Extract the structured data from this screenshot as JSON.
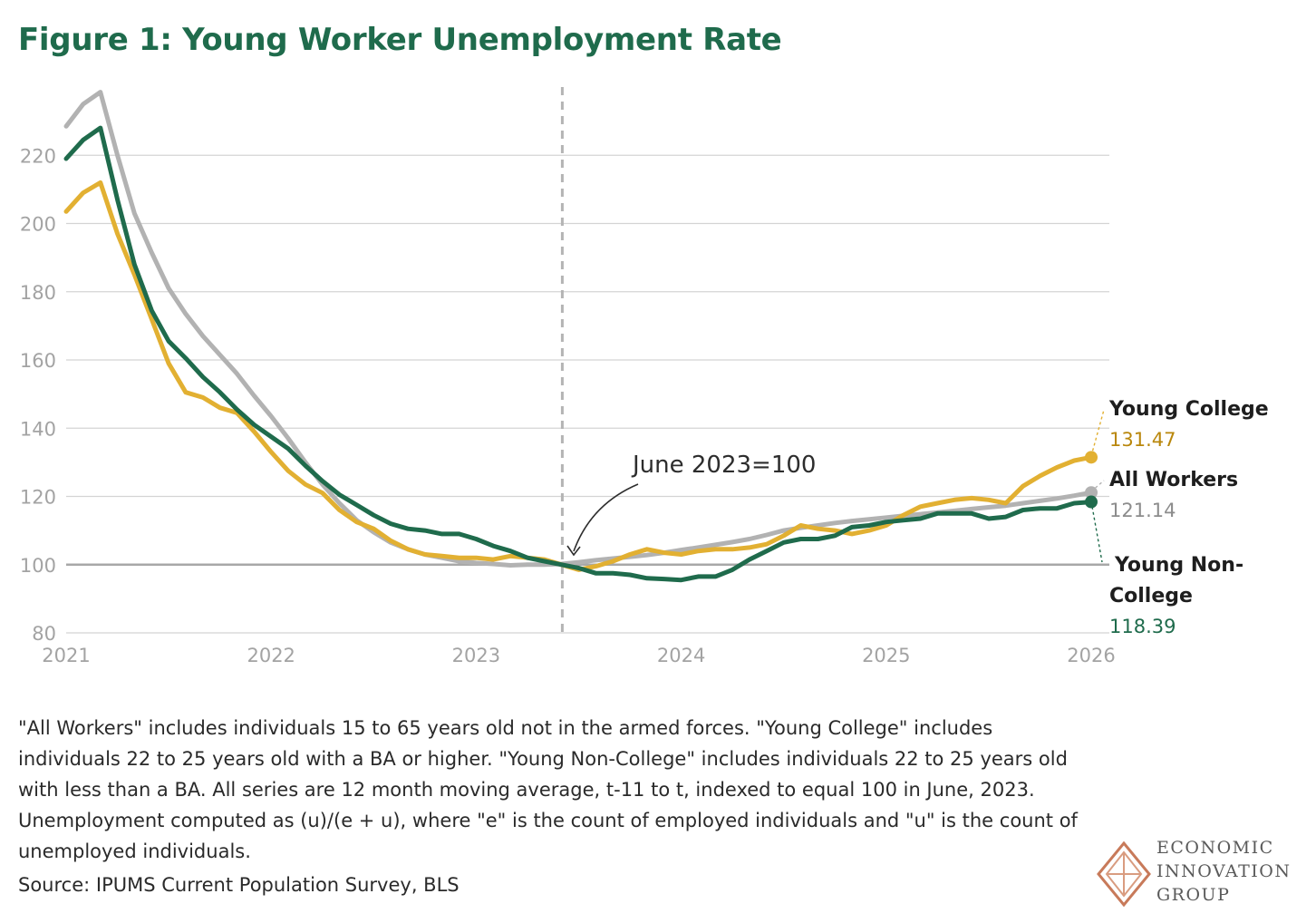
{
  "chart_data": {
    "type": "line",
    "title": "Figure 1: Young Worker Unemployment Rate",
    "xlabel": "",
    "ylabel": "",
    "ylim": [
      80,
      240
    ],
    "xlim": [
      2021,
      2026
    ],
    "yticks": [
      80,
      100,
      120,
      140,
      160,
      180,
      200,
      220
    ],
    "xticks": [
      "2021",
      "2022",
      "2023",
      "2024",
      "2025",
      "2026"
    ],
    "grid": true,
    "reference_line": 100,
    "marker": {
      "x": 2023.42,
      "label": "June 2023=100"
    },
    "series": [
      {
        "name": "All Workers",
        "color": "#b2b2b2",
        "end_label": "121.14",
        "x": [
          2021.0,
          2021.083,
          2021.167,
          2021.25,
          2021.333,
          2021.417,
          2021.5,
          2021.583,
          2021.667,
          2021.75,
          2021.833,
          2021.917,
          2022.0,
          2022.083,
          2022.167,
          2022.25,
          2022.333,
          2022.417,
          2022.5,
          2022.583,
          2022.667,
          2022.75,
          2022.833,
          2022.917,
          2023.0,
          2023.083,
          2023.167,
          2023.25,
          2023.333,
          2023.417,
          2023.5,
          2023.583,
          2023.667,
          2023.75,
          2023.833,
          2023.917,
          2024.0,
          2024.083,
          2024.167,
          2024.25,
          2024.333,
          2024.417,
          2024.5,
          2024.583,
          2024.667,
          2024.75,
          2024.833,
          2024.917,
          2025.0,
          2025.083,
          2025.167,
          2025.25,
          2025.333,
          2025.417,
          2025.5,
          2025.583,
          2025.667,
          2025.75,
          2025.833,
          2025.917,
          2026.0
        ],
        "values": [
          228.5,
          235,
          238.5,
          220,
          203,
          191.5,
          181,
          173.5,
          167,
          161.5,
          156,
          149.5,
          143.5,
          137,
          130,
          123.5,
          118,
          113,
          109.5,
          106.5,
          104.5,
          103,
          102,
          101,
          100.5,
          100.2,
          99.8,
          100,
          100,
          100.2,
          100.7,
          101.3,
          101.8,
          102.3,
          102.8,
          103.5,
          104.3,
          105,
          105.8,
          106.6,
          107.5,
          108.7,
          110,
          110.8,
          111.5,
          112.2,
          112.8,
          113.3,
          113.8,
          114.3,
          114.8,
          115.3,
          115.8,
          116.3,
          116.8,
          117.3,
          118,
          118.7,
          119.4,
          120.2,
          121.14
        ]
      },
      {
        "name": "Young College",
        "color": "#e2b032",
        "end_label": "131.47",
        "x": [
          2021.0,
          2021.083,
          2021.167,
          2021.25,
          2021.333,
          2021.417,
          2021.5,
          2021.583,
          2021.667,
          2021.75,
          2021.833,
          2021.917,
          2022.0,
          2022.083,
          2022.167,
          2022.25,
          2022.333,
          2022.417,
          2022.5,
          2022.583,
          2022.667,
          2022.75,
          2022.833,
          2022.917,
          2023.0,
          2023.083,
          2023.167,
          2023.25,
          2023.333,
          2023.417,
          2023.5,
          2023.583,
          2023.667,
          2023.75,
          2023.833,
          2023.917,
          2024.0,
          2024.083,
          2024.167,
          2024.25,
          2024.333,
          2024.417,
          2024.5,
          2024.583,
          2024.667,
          2024.75,
          2024.833,
          2024.917,
          2025.0,
          2025.083,
          2025.167,
          2025.25,
          2025.333,
          2025.417,
          2025.5,
          2025.583,
          2025.667,
          2025.75,
          2025.833,
          2025.917,
          2026.0
        ],
        "values": [
          203.5,
          209,
          212,
          197,
          185,
          172,
          159,
          150.5,
          149,
          146,
          144.5,
          139,
          133,
          127.5,
          123.5,
          121,
          116,
          112.5,
          110.5,
          107,
          104.5,
          103,
          102.5,
          102,
          102,
          101.5,
          102.5,
          102,
          101.5,
          100,
          98.5,
          99.5,
          101,
          103,
          104.5,
          103.5,
          103,
          104,
          104.5,
          104.5,
          105,
          106,
          108.5,
          111.5,
          110.5,
          110,
          109,
          110,
          111.5,
          114.5,
          117,
          118,
          119,
          119.5,
          119,
          118,
          123,
          126,
          128.5,
          130.5,
          131.47
        ]
      },
      {
        "name": "Young Non-College",
        "color": "#1f6b4c",
        "end_label": "118.39",
        "x": [
          2021.0,
          2021.083,
          2021.167,
          2021.25,
          2021.333,
          2021.417,
          2021.5,
          2021.583,
          2021.667,
          2021.75,
          2021.833,
          2021.917,
          2022.0,
          2022.083,
          2022.167,
          2022.25,
          2022.333,
          2022.417,
          2022.5,
          2022.583,
          2022.667,
          2022.75,
          2022.833,
          2022.917,
          2023.0,
          2023.083,
          2023.167,
          2023.25,
          2023.333,
          2023.417,
          2023.5,
          2023.583,
          2023.667,
          2023.75,
          2023.833,
          2023.917,
          2024.0,
          2024.083,
          2024.167,
          2024.25,
          2024.333,
          2024.417,
          2024.5,
          2024.583,
          2024.667,
          2024.75,
          2024.833,
          2024.917,
          2025.0,
          2025.083,
          2025.167,
          2025.25,
          2025.333,
          2025.417,
          2025.5,
          2025.583,
          2025.667,
          2025.75,
          2025.833,
          2025.917,
          2026.0
        ],
        "values": [
          219,
          224.5,
          228,
          207,
          188,
          174.5,
          165.5,
          160.5,
          155,
          150.5,
          145.5,
          141,
          137.5,
          134,
          129,
          124.5,
          120.5,
          117.5,
          114.5,
          112,
          110.5,
          110,
          109,
          109,
          107.5,
          105.5,
          104,
          102,
          101,
          100,
          99,
          97.5,
          97.5,
          97,
          96,
          95.8,
          95.5,
          96.5,
          96.5,
          98.5,
          101.5,
          104,
          106.5,
          107.5,
          107.5,
          108.5,
          111,
          111.5,
          112.5,
          113,
          113.5,
          115,
          115,
          115,
          113.5,
          114,
          116,
          116.5,
          116.5,
          118,
          118.39
        ]
      }
    ]
  },
  "notes": {
    "text": "\"All Workers\" includes individuals 15 to 65 years old not in the armed forces. \"Young College\" includes individuals 22 to 25 years old with a BA or higher. \"Young Non-College\" includes individuals 22 to 25 years old with less than a BA. All series are 12 month moving average, t-11 to t, indexed to equal 100 in June, 2023. Unemployment computed as (u)/(e + u), where \"e\" is the count of employed individuals and \"u\" is the count of unemployed individuals.",
    "source": "Source: IPUMS Current Population Survey, BLS"
  },
  "logo": {
    "line1": "ECONOMIC",
    "line2": "INNOVATION",
    "line3": "GROUP",
    "color": "#c87a5a"
  },
  "colors": {
    "title": "#1f6b4c",
    "grid": "#d4d4d4",
    "tick": "#a3a3a3",
    "young_college_value": "#b9870c",
    "all_workers_value": "#8c8c8c",
    "young_non_college_value": "#1f6b4c"
  }
}
